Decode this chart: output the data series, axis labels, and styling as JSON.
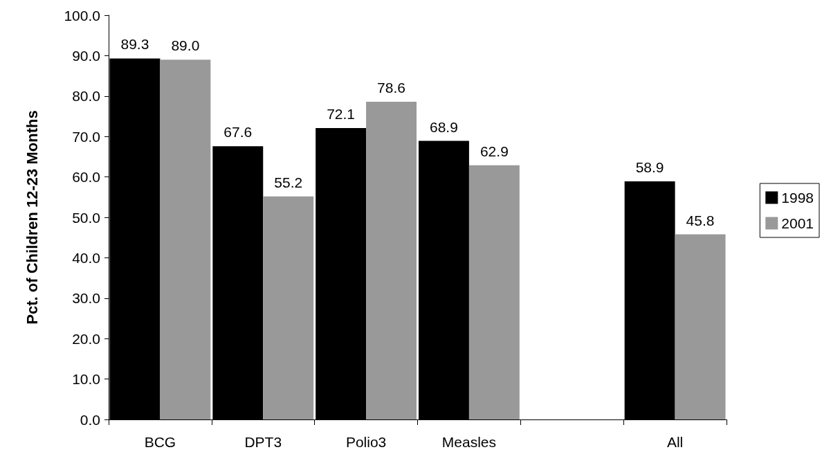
{
  "chart_data": {
    "type": "bar",
    "ylabel": "Pct. of Children 12-23 Months",
    "categories": [
      "BCG",
      "DPT3",
      "Polio3",
      "Measles",
      null,
      "All"
    ],
    "series": [
      {
        "name": "1998",
        "color": "#000000",
        "values": [
          89.3,
          67.6,
          72.1,
          68.9,
          null,
          58.9
        ],
        "value_labels": [
          "89.3",
          "67.6",
          "72.1",
          "68.9",
          null,
          "58.9"
        ]
      },
      {
        "name": "2001",
        "color": "#999999",
        "values": [
          89.0,
          55.2,
          78.6,
          62.9,
          null,
          45.8
        ],
        "value_labels": [
          "89.0",
          "55.2",
          "78.6",
          "62.9",
          null,
          "45.8"
        ]
      }
    ],
    "ylim": [
      0,
      100
    ],
    "yticks": [
      {
        "value": 0,
        "label": "0.0"
      },
      {
        "value": 10,
        "label": "10.0"
      },
      {
        "value": 20,
        "label": "20.0"
      },
      {
        "value": 30,
        "label": "30.0"
      },
      {
        "value": 40,
        "label": "40.0"
      },
      {
        "value": 50,
        "label": "50.0"
      },
      {
        "value": 60,
        "label": "60.0"
      },
      {
        "value": 70,
        "label": "70.0"
      },
      {
        "value": 80,
        "label": "80.0"
      },
      {
        "value": 90,
        "label": "90.0"
      },
      {
        "value": 100,
        "label": "100.0"
      }
    ],
    "grid": false,
    "legend": "right"
  }
}
